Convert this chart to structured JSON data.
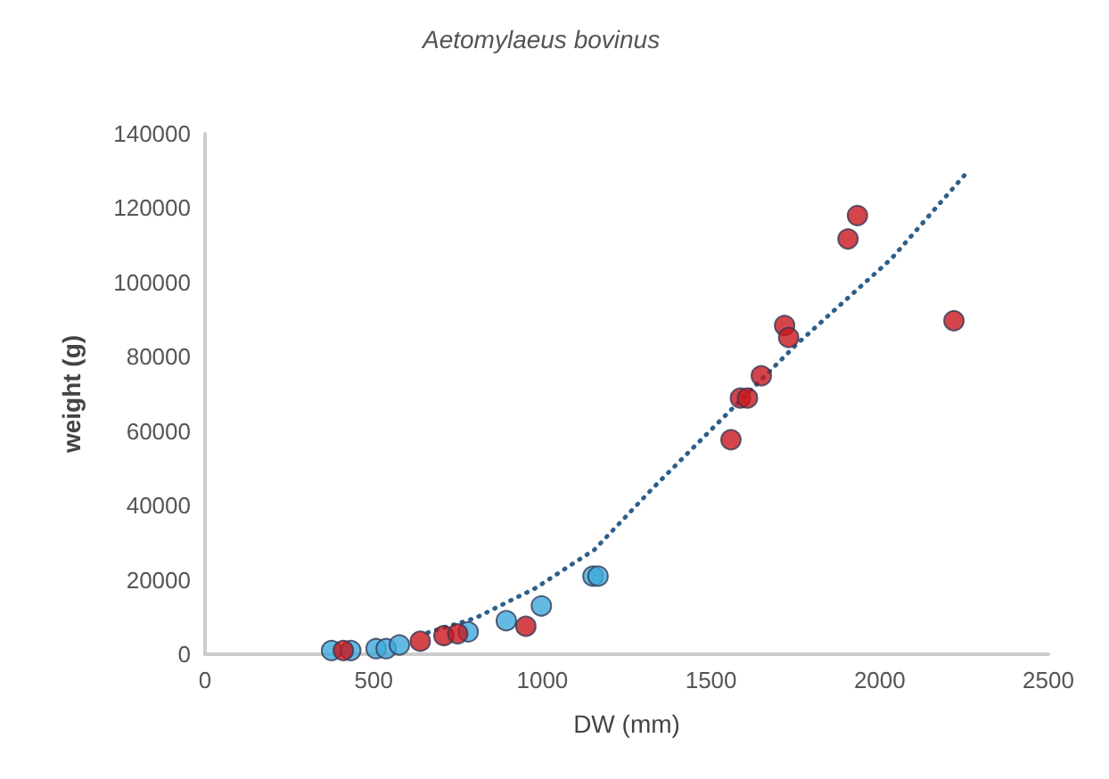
{
  "chart_data": {
    "type": "scatter",
    "title": "Aetomylaeus bovinus",
    "xlabel": "DW (mm)",
    "ylabel": "weight (g)",
    "xlim": [
      0,
      2500
    ],
    "xticks": [
      0,
      500,
      1000,
      1500,
      2000,
      2500
    ],
    "ylim": [
      0,
      140000
    ],
    "yticks": [
      0,
      20000,
      40000,
      60000,
      80000,
      100000,
      120000,
      140000
    ],
    "grid": false,
    "marker": "circle",
    "series": [
      {
        "color": "#3fa9dc",
        "x": [
          375,
          432,
          507,
          537,
          576,
          780,
          893,
          997,
          1150,
          1165
        ],
        "values": [
          1000,
          1000,
          1500,
          1500,
          2500,
          6000,
          9000,
          13000,
          21000,
          21000
        ]
      },
      {
        "color": "#c8161d",
        "x": [
          410,
          638,
          708,
          749,
          951,
          1559,
          1587,
          1608,
          1649,
          1718,
          1730,
          1906,
          1934,
          2220
        ],
        "values": [
          1000,
          3500,
          5000,
          5500,
          7500,
          57700,
          68900,
          68900,
          74900,
          88400,
          85200,
          111700,
          118000,
          89700
        ]
      },
      {
        "type": "line",
        "line_style": "dotted",
        "marker": "none",
        "color": "#2e5f8a",
        "x": [
          660,
          801,
          978,
          1154,
          1330,
          1506,
          1753,
          2035,
          2251
        ],
        "values": [
          5800,
          9700,
          17700,
          28100,
          44900,
          60900,
          83300,
          106400,
          128800
        ]
      }
    ]
  }
}
